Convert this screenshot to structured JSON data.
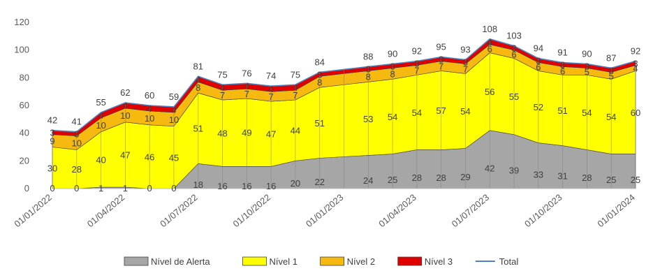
{
  "chart_data": {
    "type": "area",
    "stacked": true,
    "ylim": [
      0,
      120
    ],
    "yticks": [
      0,
      20,
      40,
      60,
      80,
      100,
      120
    ],
    "grid": false,
    "legend_position": "bottom",
    "x": [
      "2022-01",
      "2022-02",
      "2022-03",
      "2022-04",
      "2022-05",
      "2022-06",
      "2022-07",
      "2022-08",
      "2022-09",
      "2022-10",
      "2022-11",
      "2022-12",
      "2023-01",
      "2023-02",
      "2023-03",
      "2023-04",
      "2023-05",
      "2023-06",
      "2023-07",
      "2023-08",
      "2023-09",
      "2023-10",
      "2023-11",
      "2023-12",
      "2024-01"
    ],
    "xtick_labels": [
      "01/01/2022",
      "01/04/2022",
      "01/07/2022",
      "01/10/2022",
      "01/01/2023",
      "01/04/2023",
      "01/07/2023",
      "01/10/2023",
      "01/01/2024"
    ],
    "xtick_dates": [
      "2022-01",
      "2022-04",
      "2022-07",
      "2022-10",
      "2023-01",
      "2023-04",
      "2023-07",
      "2023-10",
      "2024-01"
    ],
    "series": [
      {
        "name": "Nível de Alerta",
        "color": "#a6a6a6",
        "values": [
          0,
          0,
          1,
          1,
          0,
          0,
          18,
          16,
          16,
          16,
          20,
          22,
          null,
          24,
          25,
          28,
          28,
          29,
          42,
          39,
          33,
          31,
          28,
          25,
          25
        ]
      },
      {
        "name": "Nível 1",
        "color": "#ffff00",
        "values": [
          30,
          28,
          40,
          47,
          46,
          45,
          51,
          48,
          49,
          47,
          44,
          51,
          null,
          53,
          54,
          54,
          57,
          54,
          56,
          55,
          52,
          51,
          54,
          54,
          60
        ]
      },
      {
        "name": "Nível 2",
        "color": "#f5b90f",
        "values": [
          9,
          10,
          10,
          10,
          10,
          10,
          8,
          7,
          7,
          7,
          7,
          8,
          null,
          8,
          8,
          7,
          7,
          7,
          6,
          6,
          6,
          6,
          5,
          5,
          4
        ]
      },
      {
        "name": "Nível 3",
        "color": "#e00000",
        "values": [
          3,
          3,
          4,
          4,
          4,
          4,
          4,
          4,
          4,
          4,
          4,
          3,
          null,
          3,
          3,
          3,
          3,
          3,
          4,
          3,
          3,
          3,
          3,
          3,
          3
        ]
      }
    ],
    "total": {
      "name": "Total",
      "color": "#4f81bd",
      "values": [
        42,
        41,
        55,
        62,
        60,
        59,
        81,
        75,
        76,
        74,
        75,
        84,
        null,
        88,
        90,
        92,
        95,
        93,
        108,
        103,
        94,
        91,
        90,
        87,
        92
      ]
    }
  }
}
